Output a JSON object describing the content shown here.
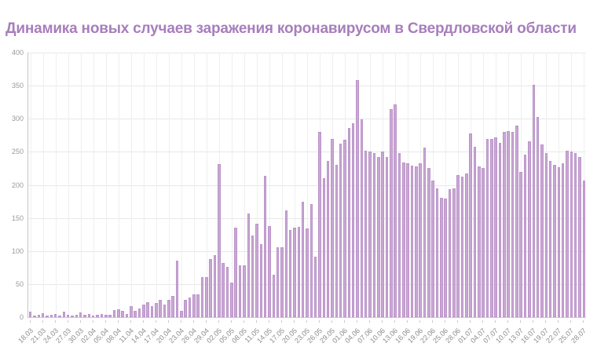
{
  "title": "Динамика новых случаев заражения коронавирусом в Свердловской области",
  "colors": {
    "title": "#a77ebc",
    "bar_fill": "#c9a7d4",
    "bar_border": "#bb94c9",
    "hgrid": "#e8e8e8",
    "vgrid": "#efeff1",
    "axis": "#c6c6c6",
    "tick_label": "#8b8b8b",
    "background": "#ffffff"
  },
  "chart_data": {
    "type": "bar",
    "title": "Динамика новых случаев заражения коронавирусом в Свердловской области",
    "xlabel": "",
    "ylabel": "",
    "ylim": [
      0,
      400
    ],
    "y_ticks": [
      0,
      50,
      100,
      150,
      200,
      250,
      300,
      350,
      400
    ],
    "grid": "on",
    "legend": "none",
    "x_tick_every": 3,
    "categories": [
      "18.03",
      "19.03",
      "20.03",
      "21.03",
      "22.03",
      "23.03",
      "24.03",
      "25.03",
      "26.03",
      "27.03",
      "28.03",
      "29.03",
      "30.03",
      "31.03",
      "01.04",
      "02.04",
      "03.04",
      "04.04",
      "05.04",
      "06.04",
      "07.04",
      "08.04",
      "09.04",
      "10.04",
      "11.04",
      "12.04",
      "13.04",
      "14.04",
      "15.04",
      "16.04",
      "17.04",
      "18.04",
      "19.04",
      "20.04",
      "21.04",
      "22.04",
      "23.04",
      "24.04",
      "25.04",
      "26.04",
      "27.04",
      "28.04",
      "29.04",
      "30.04",
      "01.05",
      "02.05",
      "03.05",
      "04.05",
      "05.05",
      "06.05",
      "07.05",
      "08.05",
      "09.05",
      "10.05",
      "11.05",
      "12.05",
      "13.05",
      "14.05",
      "15.05",
      "16.05",
      "17.05",
      "18.05",
      "19.05",
      "20.05",
      "21.05",
      "22.05",
      "23.05",
      "24.05",
      "25.05",
      "26.05",
      "27.05",
      "28.05",
      "29.05",
      "30.05",
      "31.05",
      "01.06",
      "02.06",
      "03.06",
      "04.06",
      "05.06",
      "06.06",
      "07.06",
      "08.06",
      "09.06",
      "10.06",
      "11.06",
      "12.06",
      "13.06",
      "14.06",
      "15.06",
      "16.06",
      "17.06",
      "18.06",
      "19.06",
      "20.06",
      "21.06",
      "22.06",
      "23.06",
      "24.06",
      "25.06",
      "26.06",
      "27.06",
      "28.06",
      "29.06",
      "30.06",
      "01.07",
      "02.07",
      "03.07",
      "04.07",
      "05.07",
      "06.07",
      "07.07",
      "08.07",
      "09.07",
      "10.07",
      "11.07",
      "12.07",
      "13.07",
      "14.07",
      "15.07",
      "16.07",
      "17.07",
      "18.07",
      "19.07",
      "20.07",
      "21.07",
      "22.07",
      "23.07",
      "24.07",
      "25.07",
      "26.07",
      "27.07",
      "28.07"
    ],
    "values": [
      8,
      2,
      3,
      6,
      2,
      3,
      5,
      2,
      8,
      4,
      2,
      3,
      7,
      3,
      5,
      2,
      3,
      5,
      3,
      4,
      11,
      12,
      9,
      5,
      17,
      10,
      13,
      19,
      22,
      17,
      21,
      26,
      19,
      26,
      32,
      86,
      10,
      26,
      30,
      34,
      34,
      60,
      60,
      88,
      94,
      232,
      82,
      76,
      52,
      135,
      78,
      78,
      157,
      123,
      141,
      110,
      214,
      138,
      64,
      106,
      106,
      161,
      132,
      135,
      137,
      175,
      134,
      171,
      92,
      280,
      210,
      236,
      270,
      230,
      262,
      268,
      286,
      293,
      358,
      299,
      252,
      250,
      248,
      242,
      250,
      242,
      315,
      322,
      248,
      234,
      233,
      229,
      228,
      233,
      256,
      226,
      207,
      195,
      181,
      179,
      193,
      195,
      215,
      212,
      217,
      278,
      258,
      228,
      226,
      270,
      269,
      272,
      264,
      280,
      281,
      280,
      290,
      220,
      246,
      266,
      351,
      303,
      261,
      248,
      236,
      230,
      227,
      233,
      252,
      250,
      248,
      242,
      207
    ]
  }
}
